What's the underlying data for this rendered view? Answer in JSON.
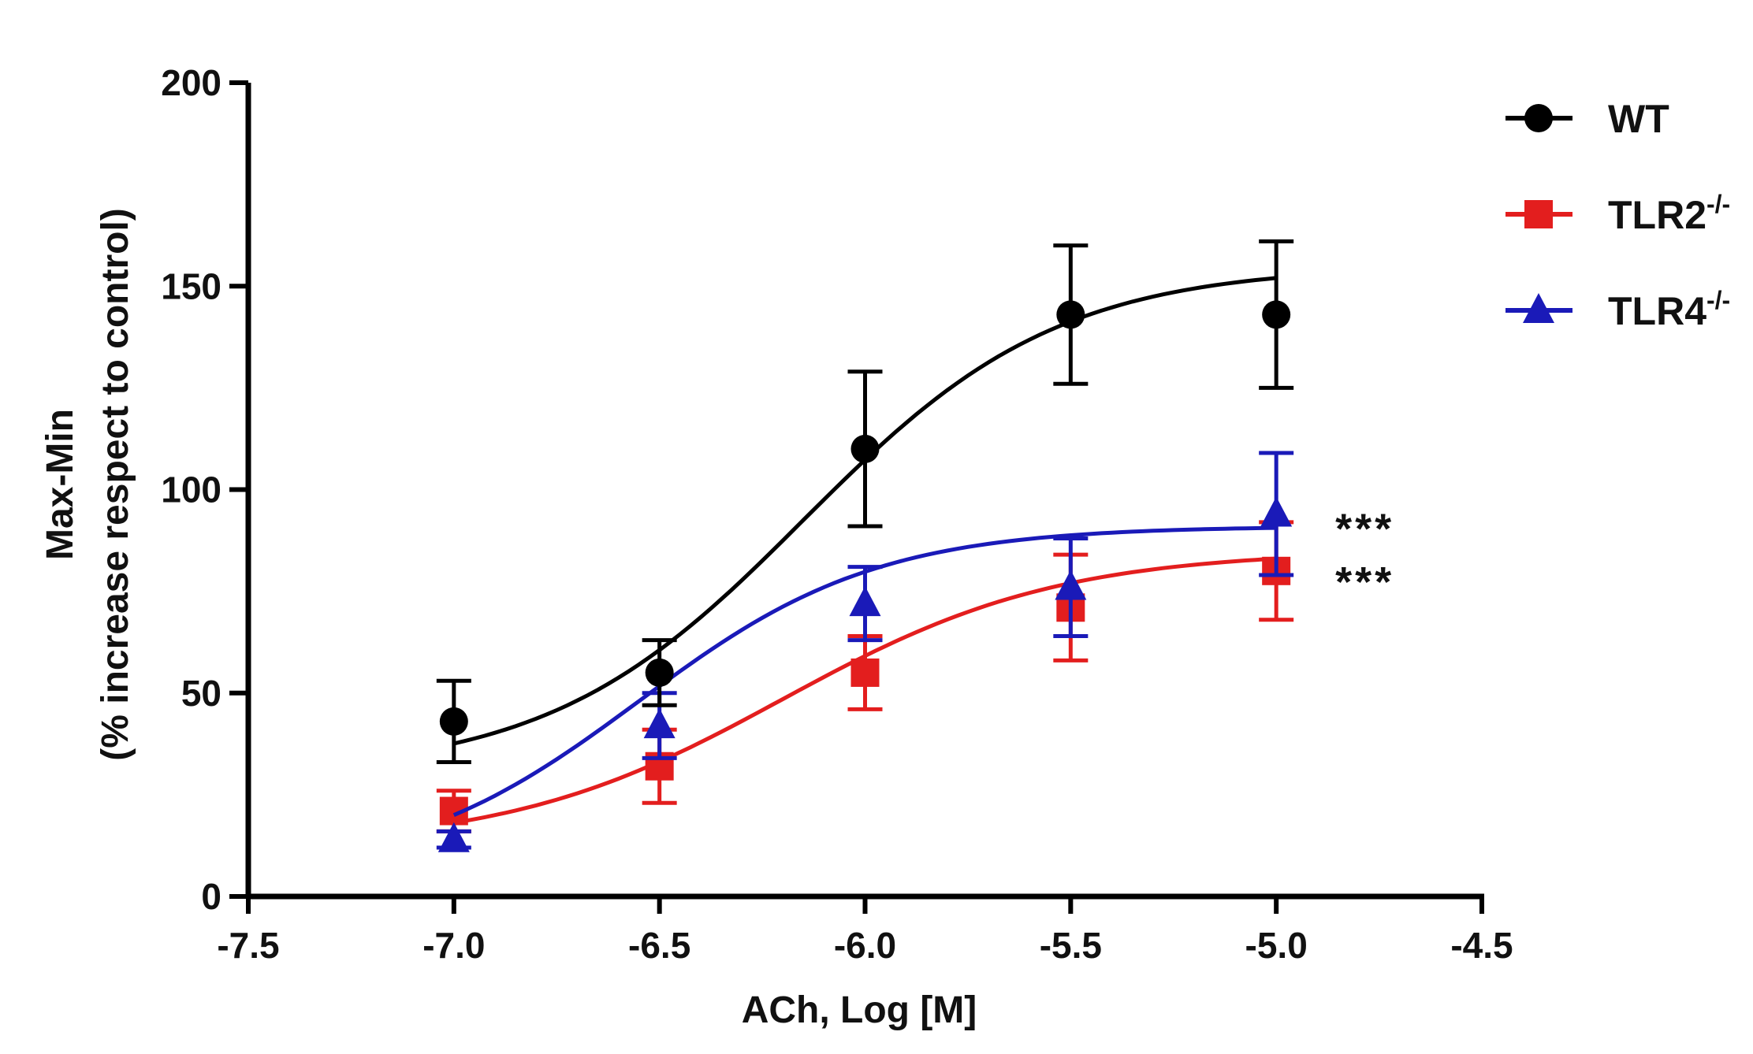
{
  "chart_data": {
    "type": "line",
    "title": "",
    "xlabel": "ACh, Log [M]",
    "ylabel": [
      "Max-Min",
      "(% increase respect to control)"
    ],
    "xlim": [
      -7.5,
      -4.5
    ],
    "ylim": [
      0,
      200
    ],
    "x_ticks": [
      -7.5,
      -7.0,
      -6.5,
      -6.0,
      -5.5,
      -5.0,
      -4.5
    ],
    "x_tick_labels": [
      "-7.5",
      "-7.0",
      "-6.5",
      "-6.0",
      "-5.5",
      "-5.0",
      "-4.5"
    ],
    "y_ticks": [
      0,
      50,
      100,
      150,
      200
    ],
    "y_tick_labels": [
      "0",
      "50",
      "100",
      "150",
      "200"
    ],
    "grid": false,
    "legend_position": "top-right",
    "x": [
      -7.0,
      -6.5,
      -6.0,
      -5.5,
      -5.0
    ],
    "series": [
      {
        "name": "WT",
        "name_base": "WT",
        "name_sup": "",
        "color": "#000000",
        "marker": "circle",
        "values": [
          43,
          55,
          110,
          143,
          143
        ],
        "errors": [
          10,
          8,
          19,
          17,
          18
        ],
        "fit": {
          "bottom": 30,
          "top": 155,
          "logEC50": -6.15,
          "hill": 1.4
        },
        "annotation": ""
      },
      {
        "name": "TLR2-/-",
        "name_base": "TLR2",
        "name_sup": "-/-",
        "color": "#e31e1e",
        "marker": "square",
        "values": [
          21,
          32,
          55,
          71,
          80
        ],
        "errors": [
          5,
          9,
          9,
          13,
          12
        ],
        "fit": {
          "bottom": 12,
          "top": 85,
          "logEC50": -6.2,
          "hill": 1.3
        },
        "annotation": "***"
      },
      {
        "name": "TLR4-/-",
        "name_base": "TLR4",
        "name_sup": "-/-",
        "color": "#1a1ab8",
        "marker": "triangle",
        "values": [
          14,
          42,
          72,
          76,
          94
        ],
        "errors": [
          2,
          8,
          9,
          12,
          15
        ],
        "fit": {
          "bottom": 5,
          "top": 91,
          "logEC50": -6.55,
          "hill": 1.5
        },
        "annotation": "***"
      }
    ]
  }
}
